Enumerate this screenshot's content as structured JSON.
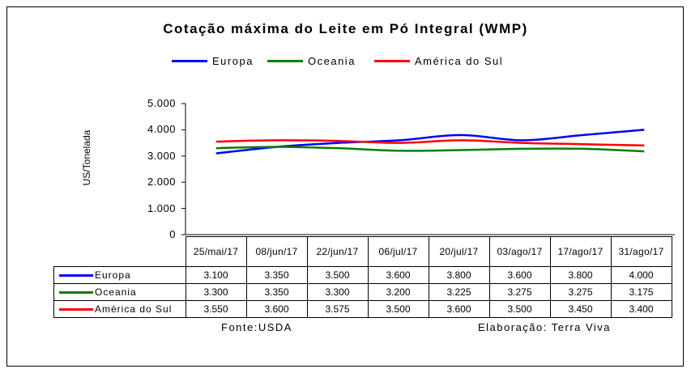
{
  "chart_data": {
    "type": "line",
    "title": "Cotação máxima do Leite em Pó Integral (WMP)",
    "ylabel": "US/Tonelada",
    "xlabel": "",
    "ylim": [
      0,
      5000
    ],
    "yticks": [
      "0",
      "1.000",
      "2.000",
      "3.000",
      "4.000",
      "5.000"
    ],
    "categories": [
      "25/mai/17",
      "08/jun/17",
      "22/jun/17",
      "06/jul/17",
      "20/jul/17",
      "03/ago/17",
      "17/ago/17",
      "31/ago/17"
    ],
    "series": [
      {
        "name": "Europa",
        "color": "#0000ff",
        "values": [
          3100,
          3350,
          3500,
          3600,
          3800,
          3600,
          3800,
          4000
        ],
        "labels": [
          "3.100",
          "3.350",
          "3.500",
          "3.600",
          "3.800",
          "3.600",
          "3.800",
          "4.000"
        ]
      },
      {
        "name": "Oceania",
        "color": "#008000",
        "values": [
          3300,
          3350,
          3300,
          3200,
          3225,
          3275,
          3275,
          3175
        ],
        "labels": [
          "3.300",
          "3.350",
          "3.300",
          "3.200",
          "3.225",
          "3.275",
          "3.275",
          "3.175"
        ]
      },
      {
        "name": "América do Sul",
        "color": "#ff0000",
        "values": [
          3550,
          3600,
          3575,
          3500,
          3600,
          3500,
          3450,
          3400
        ],
        "labels": [
          "3.550",
          "3.600",
          "3.575",
          "3.500",
          "3.600",
          "3.500",
          "3.450",
          "3.400"
        ]
      }
    ],
    "legend": "top",
    "grid": false
  },
  "footer": {
    "source": "Fonte:USDA",
    "credit": "Elaboração: Terra Viva"
  }
}
